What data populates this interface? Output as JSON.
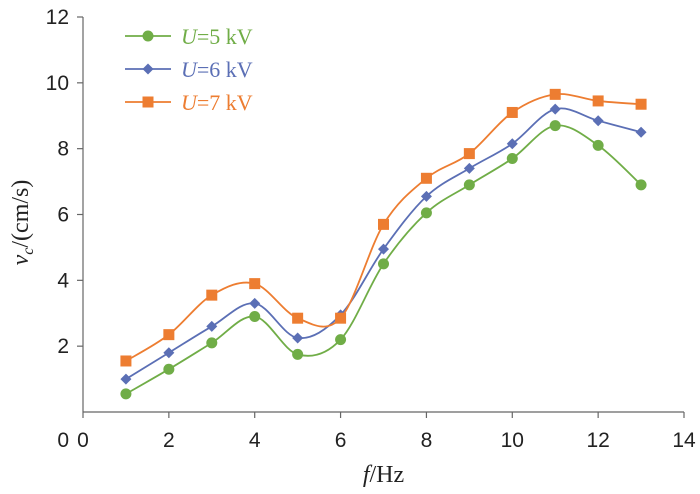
{
  "chart_data": {
    "type": "line",
    "xlabel": {
      "var": "f",
      "unit": "/Hz"
    },
    "ylabel": {
      "var": "v",
      "sub": "c",
      "unit": "/(cm/s)"
    },
    "xlim": [
      0,
      14
    ],
    "ylim": [
      0,
      12
    ],
    "xticks": [
      0,
      2,
      4,
      6,
      8,
      10,
      12,
      14
    ],
    "yticks": [
      2,
      4,
      6,
      8,
      10,
      12
    ],
    "y_origin_label": "0",
    "grid": false,
    "legend_position": "top-left",
    "x": [
      1,
      2,
      3,
      4,
      5,
      6,
      7,
      8,
      9,
      10,
      11,
      12,
      13
    ],
    "series": [
      {
        "name": "U=5 kV",
        "legend_var": "U",
        "legend_rest": "=5 kV",
        "color": "#70ad47",
        "marker": "circle",
        "values": [
          0.55,
          1.3,
          2.1,
          2.9,
          1.75,
          2.2,
          4.5,
          6.05,
          6.9,
          7.7,
          8.7,
          8.1,
          6.9
        ]
      },
      {
        "name": "U=6 kV",
        "legend_var": "U",
        "legend_rest": "=6 kV",
        "color": "#5b6fb5",
        "marker": "diamond",
        "values": [
          1.0,
          1.8,
          2.6,
          3.3,
          2.25,
          2.95,
          4.95,
          6.55,
          7.4,
          8.15,
          9.2,
          8.85,
          8.5
        ]
      },
      {
        "name": "U=7 kV",
        "legend_var": "U",
        "legend_rest": "=7 kV",
        "color": "#ed7d31",
        "marker": "square",
        "values": [
          1.55,
          2.35,
          3.55,
          3.9,
          2.85,
          2.85,
          5.7,
          7.1,
          7.85,
          9.1,
          9.65,
          9.45,
          9.35
        ]
      }
    ]
  }
}
